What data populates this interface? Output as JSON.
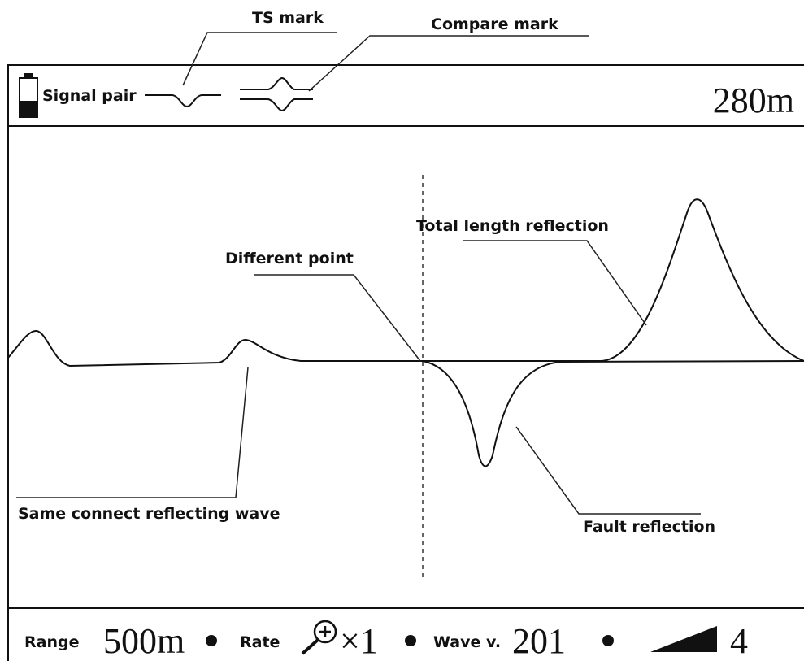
{
  "annotations": {
    "ts_mark": "TS mark",
    "compare_mark": "Compare mark",
    "total_length": "Total length reflection",
    "different_point": "Different point",
    "same_connect": "Same connect reflecting wave",
    "fault": "Fault reflection"
  },
  "header": {
    "signal_label": "Signal pair",
    "distance": "280m"
  },
  "status_bar": {
    "range_label": "Range",
    "range_value": "500m",
    "rate_label": "Rate",
    "rate_value": "×1",
    "wave_label": "Wave v.",
    "wave_value": "201",
    "gain_value": "4"
  }
}
